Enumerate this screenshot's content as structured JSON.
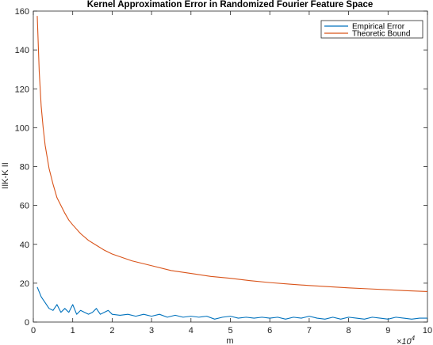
{
  "chart_data": {
    "type": "line",
    "title": "Kernel Approximation Error in Randomized Fourier Feature Space",
    "xlabel": "m",
    "ylabel": "IIK-K II",
    "x_exponent_label": "×10",
    "x_exponent_power": "4",
    "xlim": [
      0,
      100000
    ],
    "ylim": [
      0,
      160
    ],
    "xticks": [
      0,
      10000,
      20000,
      30000,
      40000,
      50000,
      60000,
      70000,
      80000,
      90000,
      100000
    ],
    "xtick_labels": [
      "0",
      "1",
      "2",
      "3",
      "4",
      "5",
      "6",
      "7",
      "8",
      "9",
      "10"
    ],
    "yticks": [
      0,
      20,
      40,
      60,
      80,
      100,
      120,
      140,
      160
    ],
    "ytick_labels": [
      "0",
      "20",
      "40",
      "60",
      "80",
      "100",
      "120",
      "140",
      "160"
    ],
    "grid": false,
    "legend_position": "top-right",
    "series": [
      {
        "name": "Empirical Error",
        "color": "#0072BD",
        "x": [
          1000,
          2000,
          3000,
          4000,
          5000,
          6000,
          7000,
          8000,
          9000,
          10000,
          11000,
          12000,
          13000,
          14000,
          15000,
          16000,
          17000,
          18000,
          19000,
          20000,
          22000,
          24000,
          26000,
          28000,
          30000,
          32000,
          34000,
          36000,
          38000,
          40000,
          42000,
          44000,
          46000,
          48000,
          50000,
          52000,
          54000,
          56000,
          58000,
          60000,
          62000,
          64000,
          66000,
          68000,
          70000,
          72000,
          74000,
          76000,
          78000,
          80000,
          82000,
          84000,
          86000,
          88000,
          90000,
          92000,
          94000,
          96000,
          98000,
          100000
        ],
        "y": [
          18,
          13,
          10,
          7,
          6,
          9,
          5,
          7,
          5,
          9,
          4,
          6,
          5,
          4,
          5,
          7,
          4,
          5,
          6,
          4,
          3.5,
          4,
          3,
          4,
          3,
          4,
          2.5,
          3.5,
          2.5,
          3,
          2.5,
          3,
          1.5,
          2.5,
          3,
          2,
          2.5,
          2,
          2.5,
          2,
          2.5,
          1.5,
          2.5,
          2,
          3,
          2,
          1.5,
          2.5,
          1.5,
          2.5,
          2,
          1.5,
          2.5,
          2,
          1.5,
          2.5,
          2,
          1.5,
          2,
          2
        ]
      },
      {
        "name": "Theoretic Bound",
        "color": "#D95319",
        "x": [
          1000,
          1500,
          2000,
          2500,
          3000,
          4000,
          5000,
          6000,
          7000,
          8000,
          9000,
          10000,
          12000,
          14000,
          16000,
          18000,
          20000,
          25000,
          30000,
          35000,
          40000,
          45000,
          50000,
          55000,
          60000,
          65000,
          70000,
          75000,
          80000,
          85000,
          90000,
          95000,
          100000
        ],
        "y": [
          157.5,
          129,
          111,
          100,
          91,
          79,
          71,
          64,
          60,
          56,
          52.5,
          50,
          45.5,
          42,
          39.5,
          37,
          35,
          31.5,
          29,
          26.5,
          25,
          23.5,
          22.5,
          21.3,
          20.3,
          19.5,
          18.8,
          18.2,
          17.6,
          17.1,
          16.6,
          16.1,
          15.7
        ]
      }
    ]
  }
}
